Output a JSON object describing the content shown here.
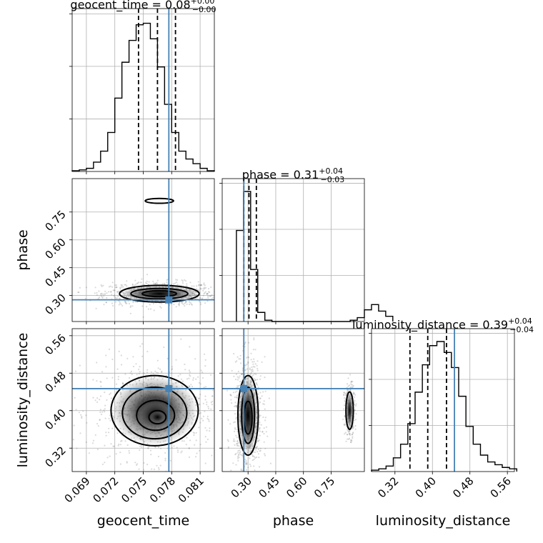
{
  "chart_data": {
    "type": "corner",
    "parameters": [
      {
        "name": "geocent_time",
        "xlabel": "geocent_time",
        "range": [
          0.0675,
          0.0825
        ],
        "ticks": [
          0.069,
          0.072,
          0.075,
          0.078,
          0.081
        ],
        "tick_labels": [
          "0.069",
          "0.072",
          "0.075",
          "0.078",
          "0.081"
        ],
        "title_main": "geocent_time = 0.08",
        "title_sup": "+0.00",
        "title_sub": "−0.00",
        "quantiles": [
          0.0745,
          0.0765,
          0.0784
        ],
        "truth": 0.0777,
        "hist_edges_start": 0.0675,
        "hist_bin_width": 0.00075,
        "hist_counts": [
          0.5,
          1,
          2,
          6,
          13,
          25,
          47,
          70,
          84,
          94,
          95,
          85,
          67,
          43,
          25,
          13,
          8,
          5,
          2,
          0.5
        ]
      },
      {
        "name": "phase",
        "xlabel": "phase",
        "ylabel": "phase",
        "range": [
          0.16,
          0.93
        ],
        "ticks": [
          0.3,
          0.45,
          0.6,
          0.75
        ],
        "tick_labels": [
          "0.30",
          "0.45",
          "0.60",
          "0.75"
        ],
        "title_main": "phase = 0.31",
        "title_sup": "+0.04",
        "title_sub": "−0.03",
        "quantiles": [
          0.277,
          0.305,
          0.345
        ],
        "truth": 0.277,
        "hist_edges_start": 0.237,
        "hist_bin_width": 0.0385,
        "hist_counts": [
          70,
          100,
          40,
          7,
          1,
          0,
          0,
          0,
          0,
          0,
          0,
          0,
          0,
          0,
          0,
          0,
          1,
          3,
          9,
          13,
          8,
          4
        ]
      },
      {
        "name": "luminosity_distance",
        "xlabel": "luminosity_distance",
        "ylabel": "luminosity_distance",
        "range": [
          0.27,
          0.575
        ],
        "ticks": [
          0.32,
          0.4,
          0.48,
          0.56
        ],
        "tick_labels": [
          "0.32",
          "0.40",
          "0.48",
          "0.56"
        ],
        "title_main": "luminosity_distance = 0.39",
        "title_sup": "+0.04",
        "title_sub": "−0.04",
        "quantiles": [
          0.352,
          0.39,
          0.43
        ],
        "truth": 0.447,
        "hist_edges_start": 0.27,
        "hist_bin_width": 0.0155,
        "hist_counts": [
          1,
          2,
          4,
          10,
          20,
          35,
          58,
          78,
          92,
          95,
          87,
          76,
          55,
          33,
          20,
          12,
          7,
          5,
          3,
          2
        ]
      }
    ],
    "contours_2d": [
      {
        "x": "geocent_time",
        "y": "phase",
        "levels": [
          {
            "center": [
              0.0767,
              0.31
            ],
            "radii": [
              0.0042,
              0.045
            ]
          },
          {
            "center": [
              0.0767,
              0.31
            ],
            "radii": [
              0.003,
              0.028
            ]
          },
          {
            "center": [
              0.0767,
              0.31
            ],
            "radii": [
              0.0018,
              0.016
            ]
          },
          {
            "center": [
              0.0767,
              0.81
            ],
            "radii": [
              0.0015,
              0.013
            ]
          }
        ]
      },
      {
        "x": "geocent_time",
        "y": "luminosity_distance",
        "levels": [
          {
            "center": [
              0.0762,
              0.4
            ],
            "radii": [
              0.0046,
              0.075
            ]
          },
          {
            "center": [
              0.0762,
              0.395
            ],
            "radii": [
              0.0034,
              0.055
            ]
          },
          {
            "center": [
              0.0763,
              0.39
            ],
            "radii": [
              0.002,
              0.032
            ]
          },
          {
            "center": [
              0.0765,
              0.386
            ],
            "radii": [
              0.0009,
              0.014
            ]
          }
        ]
      },
      {
        "x": "phase",
        "y": "luminosity_distance",
        "levels": [
          {
            "center": [
              0.3,
              0.39
            ],
            "radii": [
              0.055,
              0.085
            ]
          },
          {
            "center": [
              0.3,
              0.39
            ],
            "radii": [
              0.035,
              0.06
            ]
          },
          {
            "center": [
              0.3,
              0.385
            ],
            "radii": [
              0.022,
              0.035
            ]
          },
          {
            "center": [
              0.85,
              0.4
            ],
            "radii": [
              0.02,
              0.04
            ]
          }
        ]
      }
    ],
    "grid": true,
    "truth_color": "#4682b4",
    "sample_color": "#7a7a7a",
    "line_color": "#000000"
  }
}
